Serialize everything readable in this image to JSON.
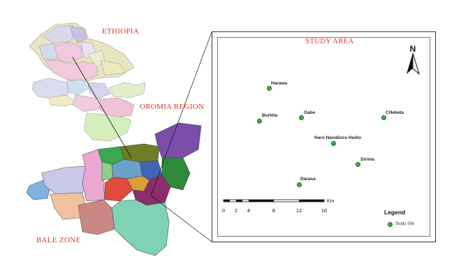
{
  "map_labels": {
    "ethiopia": "ETHIOPIA",
    "oromia": "OROMIA REGION",
    "bale_zone": "BALE ZONE"
  },
  "study_area": {
    "title": "STUDY AREA",
    "north_label": "N",
    "scale": {
      "ticks": [
        "0",
        "2",
        "4",
        "8",
        "12",
        "16"
      ],
      "unit": "Km"
    },
    "legend": {
      "title": "Legend",
      "item": "Study Site",
      "symbol_color": "#3fae49"
    },
    "sites": [
      {
        "name": "Harawa"
      },
      {
        "name": "Burkita"
      },
      {
        "name": "Gabe"
      },
      {
        "name": "CHeketa"
      },
      {
        "name": "Haro Nano"
      },
      {
        "name": "Gora Hedio"
      },
      {
        "name": "Sirima"
      },
      {
        "name": "Darasa"
      }
    ]
  },
  "colors": {
    "label_red": "#d8382a",
    "site_green": "#3fae49"
  }
}
